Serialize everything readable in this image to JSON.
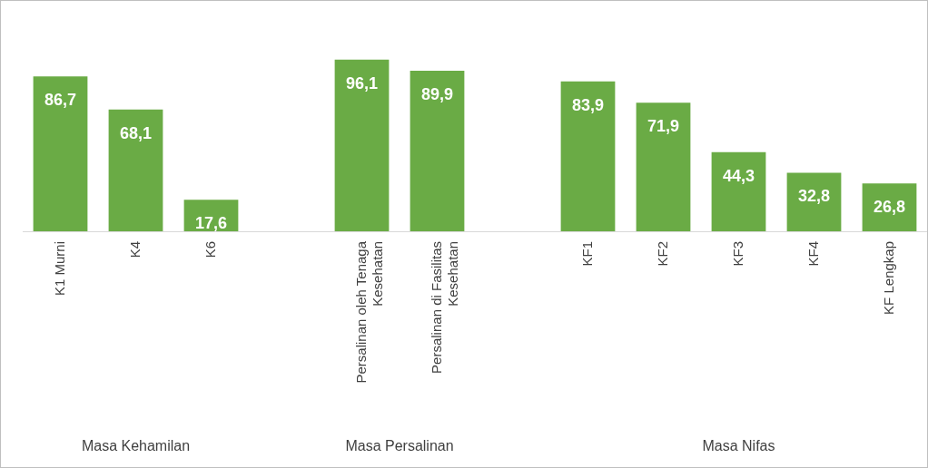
{
  "chart_data": {
    "type": "bar",
    "categories": [
      "K1 Murni",
      "K4",
      "K6",
      null,
      "Persalinan oleh Tenaga Kesehatan",
      "Persalinan di Fasilitas Kesehatan",
      null,
      "KF1",
      "KF2",
      "KF3",
      "KF4",
      "KF Lengkap"
    ],
    "values": [
      86.7,
      68.1,
      17.6,
      null,
      96.1,
      89.9,
      null,
      83.9,
      71.9,
      44.3,
      32.8,
      26.8
    ],
    "color": "#6aab45",
    "value_labels": [
      "86,7",
      "68,1",
      "17,6",
      null,
      "96,1",
      "89,9",
      null,
      "83,9",
      "71,9",
      "44,3",
      "32,8",
      "26,8"
    ],
    "annotations": [
      "Masa Kehamilan",
      "Masa Persalinan",
      "Masa Nifas"
    ]
  }
}
